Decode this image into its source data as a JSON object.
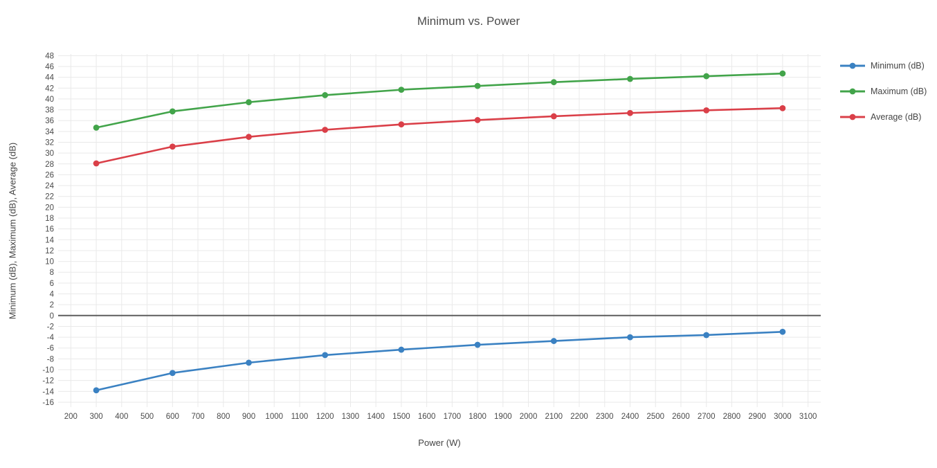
{
  "chart_data": {
    "type": "line",
    "title": "Minimum vs. Power",
    "xlabel": "Power (W)",
    "ylabel": "Minimum (dB), Maximum (dB), Average (dB)",
    "x": [
      300,
      600,
      900,
      1200,
      1500,
      1800,
      2100,
      2400,
      2700,
      3000
    ],
    "series": [
      {
        "name": "Minimum (dB)",
        "color": "#3a81c2",
        "values": [
          -13.8,
          -10.6,
          -8.7,
          -7.3,
          -6.3,
          -5.4,
          -4.7,
          -4.0,
          -3.6,
          -3.0
        ]
      },
      {
        "name": "Maximum (dB)",
        "color": "#42a44a",
        "values": [
          34.7,
          37.7,
          39.4,
          40.7,
          41.7,
          42.4,
          43.1,
          43.7,
          44.2,
          44.7
        ]
      },
      {
        "name": "Average (dB)",
        "color": "#da3f48",
        "values": [
          28.1,
          31.2,
          33.0,
          34.3,
          35.3,
          36.1,
          36.8,
          37.4,
          37.9,
          38.3
        ]
      }
    ],
    "xticks": [
      200,
      300,
      400,
      500,
      600,
      700,
      800,
      900,
      1000,
      1100,
      1200,
      1300,
      1400,
      1500,
      1600,
      1700,
      1800,
      1900,
      2000,
      2100,
      2200,
      2300,
      2400,
      2500,
      2600,
      2700,
      2800,
      2900,
      3000,
      3100
    ],
    "yticks": [
      48,
      46,
      44,
      42,
      40,
      38,
      36,
      34,
      32,
      30,
      28,
      26,
      24,
      22,
      20,
      18,
      16,
      14,
      12,
      10,
      8,
      6,
      4,
      2,
      0,
      -2,
      -4,
      -6,
      -8,
      -10,
      -12,
      -14,
      -16
    ],
    "xlim": [
      150,
      3150
    ],
    "ylim": [
      -16.9,
      48.3
    ],
    "grid": true,
    "zeroline": true,
    "legend_position": "right",
    "colors": {
      "gridline": "#e9e9e9",
      "zeroline": "#5c5c5c",
      "tick_text": "#4a4a4a",
      "title_text": "#4c4c4c"
    }
  }
}
